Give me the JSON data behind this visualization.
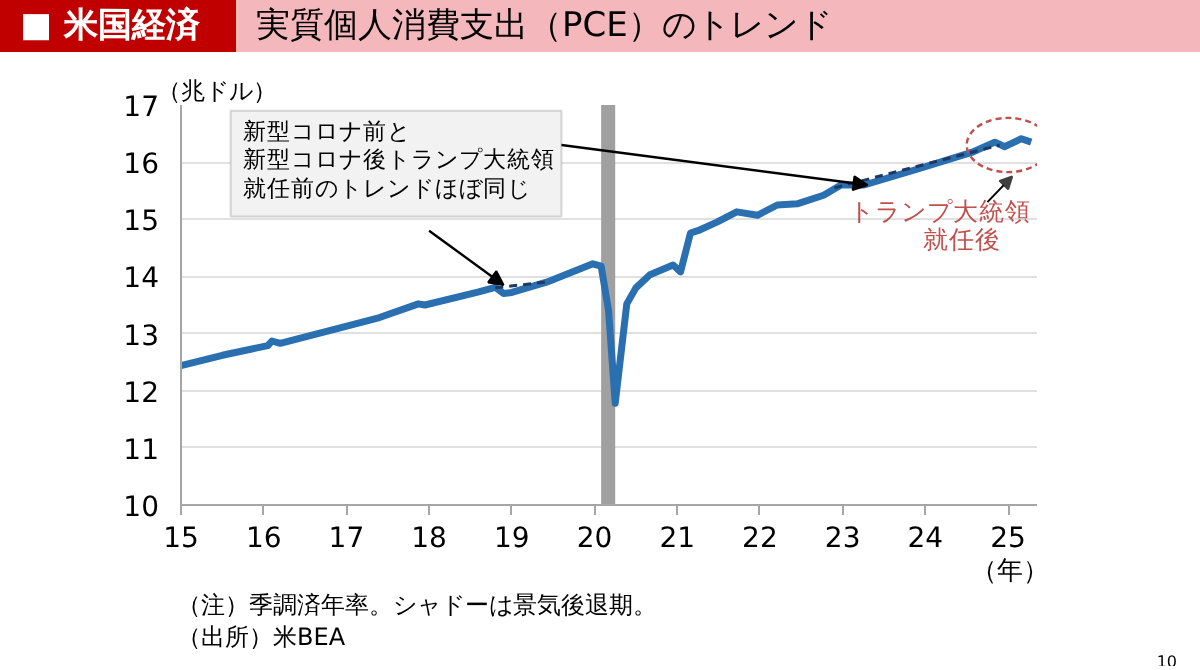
{
  "chart_data": {
    "type": "line",
    "title": "実質個人消費支出（PCE）のトレンド",
    "subtitle": "■ 米国経済",
    "ylabel": "（兆ドル）",
    "xlabel": "（年）",
    "xlim": [
      15,
      25.35
    ],
    "ylim": [
      10,
      17
    ],
    "xticks": [
      15,
      16,
      17,
      18,
      19,
      20,
      21,
      22,
      23,
      24,
      25
    ],
    "yticks": [
      10,
      11,
      12,
      13,
      14,
      15,
      16,
      17
    ],
    "grid": "y",
    "marker": "none",
    "series": [
      {
        "color": "#2a6fb0",
        "line_style": "solid",
        "x": [
          15.0,
          15.5,
          16.05,
          16.1,
          16.2,
          16.9,
          17.4,
          17.87,
          17.95,
          18.6,
          18.8,
          18.9,
          19.0,
          19.42,
          19.98,
          20.08,
          20.17,
          20.25,
          20.39,
          20.5,
          20.67,
          20.95,
          21.04,
          21.16,
          21.25,
          21.48,
          21.72,
          21.97,
          22.21,
          22.45,
          22.77,
          22.98,
          23.26,
          23.91,
          24.56,
          24.84,
          24.96,
          25.16,
          25.28
        ],
        "values": [
          12.44,
          12.62,
          12.79,
          12.87,
          12.83,
          13.09,
          13.28,
          13.52,
          13.5,
          13.73,
          13.81,
          13.7,
          13.72,
          13.9,
          14.22,
          14.18,
          13.4,
          11.78,
          13.52,
          13.8,
          14.03,
          14.2,
          14.08,
          14.76,
          14.8,
          14.95,
          15.13,
          15.07,
          15.25,
          15.27,
          15.42,
          15.6,
          15.6,
          15.88,
          16.17,
          16.35,
          16.27,
          16.41,
          16.35
        ]
      },
      {
        "color": "#1f3864",
        "line_style": "dashed",
        "x": [
          18.8,
          19.4
        ],
        "values": [
          13.8,
          13.9
        ]
      },
      {
        "color": "#1f3864",
        "line_style": "dashed",
        "x": [
          22.9,
          24.9
        ],
        "values": [
          15.55,
          16.3
        ]
      }
    ],
    "bands": [
      {
        "axis": "x",
        "from": 20.08,
        "to": 20.25,
        "color": "#a0a0a0"
      }
    ],
    "annotations": [
      {
        "text": "新型コロナ前と新型コロナ後トランプ大統領就任前のトレンドほぼ同じ",
        "x": 18.9,
        "y": 13.85
      },
      {
        "text": "トランプ大統領就任後",
        "x": 25.0,
        "y": 16.3
      },
      "（注）季調済年率。シャドーは景気後退期。",
      "（出所）米BEA",
      "10"
    ]
  }
}
